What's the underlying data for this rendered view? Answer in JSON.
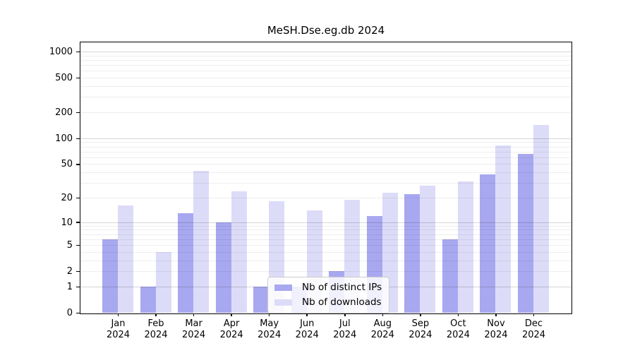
{
  "chart_data": {
    "type": "bar",
    "title": "MeSH.Dse.eg.db 2024",
    "categories": [
      "Jan",
      "Feb",
      "Mar",
      "Apr",
      "May",
      "Jun",
      "Jul",
      "Aug",
      "Sep",
      "Oct",
      "Nov",
      "Dec"
    ],
    "year_label": "2024",
    "series": [
      {
        "name": "Nb of distinct IPs",
        "color": "#a8a8f0",
        "values": [
          6,
          1,
          13,
          10,
          1,
          1,
          2,
          12,
          22,
          6,
          38,
          66
        ]
      },
      {
        "name": "Nb of downloads",
        "color": "#dcdcf8",
        "values": [
          16,
          4,
          42,
          24,
          18,
          14,
          19,
          23,
          28,
          31,
          82,
          142
        ]
      }
    ],
    "scale": "log1p",
    "ylim": [
      0,
      1272
    ],
    "y_tick_values": [
      0,
      1,
      2,
      5,
      10,
      20,
      50,
      100,
      200,
      500,
      1000
    ],
    "major_gridlines": [
      1,
      10,
      100,
      1000
    ],
    "minor_gridlines": [
      2,
      3,
      4,
      5,
      6,
      7,
      8,
      9,
      20,
      30,
      40,
      50,
      60,
      70,
      80,
      90,
      200,
      300,
      400,
      500,
      600,
      700,
      800,
      900
    ],
    "grid": "on",
    "legend_position": "inside-bottom-center",
    "axis_color": "#000000",
    "background_color": "#ffffff"
  }
}
